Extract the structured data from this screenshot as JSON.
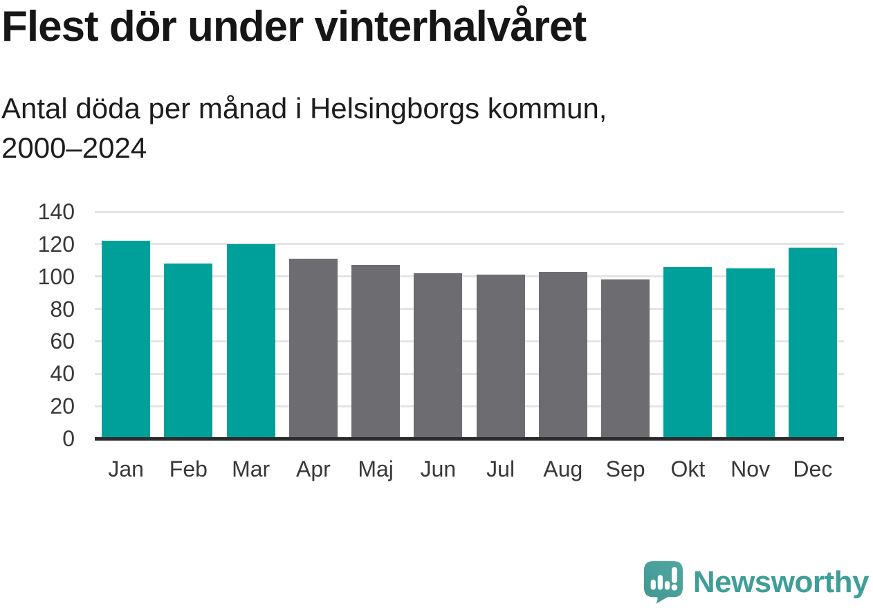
{
  "chart_data": {
    "type": "bar",
    "title": "Flest dör under vinterhalvåret",
    "subtitle": "Antal döda per månad i Helsingborgs kommun,\n2000–2024",
    "categories": [
      "Jan",
      "Feb",
      "Mar",
      "Apr",
      "Maj",
      "Jun",
      "Jul",
      "Aug",
      "Sep",
      "Okt",
      "Nov",
      "Dec"
    ],
    "values": [
      122,
      108,
      120,
      111,
      107,
      102,
      101,
      103,
      98,
      106,
      105,
      118
    ],
    "bar_color_keys": [
      "winter",
      "winter",
      "winter",
      "summer",
      "summer",
      "summer",
      "summer",
      "summer",
      "summer",
      "winter",
      "winter",
      "winter"
    ],
    "palette": {
      "winter": "#00a09a",
      "summer": "#6c6c71"
    },
    "xlabel": "",
    "ylabel": "",
    "ylim": [
      0,
      140
    ],
    "yticks": [
      0,
      20,
      40,
      60,
      80,
      100,
      120,
      140
    ],
    "grid": "horizontal",
    "legend": "none"
  },
  "logo": {
    "brand": "Newsworthy",
    "icon": "newsworthy-speech-bubble-chart-icon",
    "text_color": "#3f9e99",
    "icon_color_top": "#50a7a3",
    "icon_color_bottom": "#42968f"
  },
  "colors": {
    "background": "#ffffff",
    "title": "#161616",
    "subtitle": "#1c1c1c",
    "axis_line": "#2b2b2b",
    "gridline": "#e4e4e4",
    "tick_label": "#383838"
  }
}
